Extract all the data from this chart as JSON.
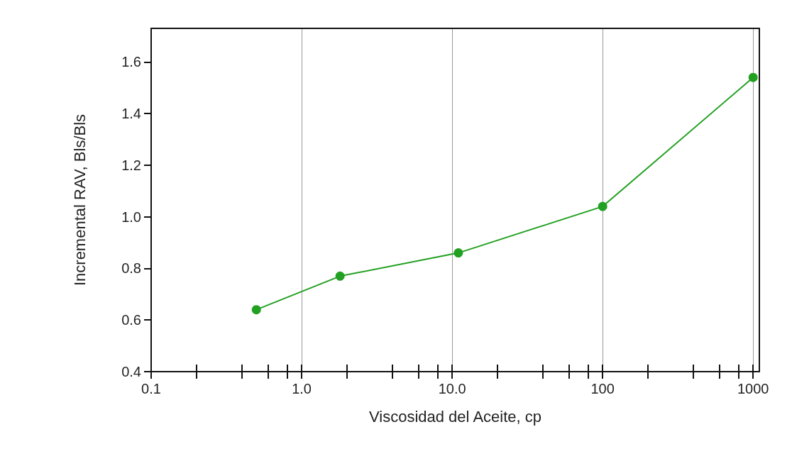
{
  "chart_data": {
    "type": "line",
    "xlabel": "Viscosidad del Aceite, cp",
    "ylabel": "Incremental RAV, Bls/Bls",
    "log": "x",
    "grid": "x",
    "marker": "circle",
    "line_style": "solid",
    "x": [
      0.5,
      1.8,
      11,
      100,
      1000
    ],
    "series": [
      {
        "color": "#22a022",
        "values": [
          0.64,
          0.77,
          0.86,
          1.04,
          1.54
        ]
      }
    ],
    "xlim": [
      0.1,
      1100
    ],
    "xticks": [
      {
        "value": 0.1,
        "label": "0.1"
      },
      {
        "value": 0.2,
        "label": null
      },
      {
        "value": 0.4,
        "label": null
      },
      {
        "value": 0.6,
        "label": null
      },
      {
        "value": 0.8,
        "label": null
      },
      {
        "value": 1,
        "label": "1.0"
      },
      {
        "value": 2,
        "label": null
      },
      {
        "value": 4,
        "label": null
      },
      {
        "value": 6,
        "label": null
      },
      {
        "value": 8,
        "label": null
      },
      {
        "value": 10,
        "label": "10.0"
      },
      {
        "value": 20,
        "label": null
      },
      {
        "value": 40,
        "label": null
      },
      {
        "value": 60,
        "label": null
      },
      {
        "value": 80,
        "label": null
      },
      {
        "value": 100,
        "label": "100"
      },
      {
        "value": 200,
        "label": null
      },
      {
        "value": 400,
        "label": null
      },
      {
        "value": 600,
        "label": null
      },
      {
        "value": 800,
        "label": null
      },
      {
        "value": 1000,
        "label": "1000"
      }
    ],
    "ylim": [
      0.4,
      1.73
    ],
    "yticks": [
      {
        "value": 0.4,
        "label": "0.4"
      },
      {
        "value": 0.6,
        "label": "0.6"
      },
      {
        "value": 0.8,
        "label": "0.8"
      },
      {
        "value": 1,
        "label": "1.0"
      },
      {
        "value": 1.2,
        "label": "1.2"
      },
      {
        "value": 1.4,
        "label": "1.4"
      },
      {
        "value": 1.6,
        "label": "1.6"
      }
    ]
  }
}
